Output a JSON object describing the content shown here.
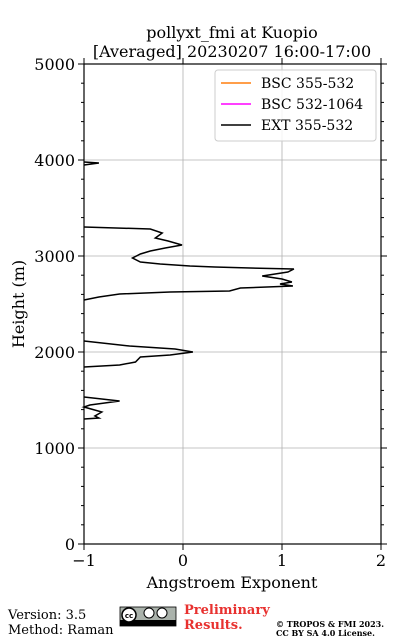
{
  "chart_data": {
    "type": "line",
    "title": "pollyxt_fmi at Kuopio",
    "subtitle": "[Averaged] 20230207 16:00-17:00",
    "xlabel": "Angstroem Exponent",
    "ylabel": "Height (m)",
    "xlim": [
      -1,
      2
    ],
    "ylim": [
      0,
      5000
    ],
    "xticks": [
      {
        "value": -1,
        "label": "−1"
      },
      0,
      1,
      2
    ],
    "yticks": [
      0,
      1000,
      2000,
      3000,
      4000,
      5000
    ],
    "yticks_minor": [
      200,
      400,
      600,
      800,
      1200,
      1400,
      1600,
      1800,
      2200,
      2400,
      2600,
      2800,
      3200,
      3400,
      3600,
      3800,
      4200,
      4400,
      4600,
      4800
    ],
    "grid": true,
    "legend": "upper right",
    "series": [
      {
        "name": "BSC 355-532",
        "color": "#ff7f0e",
        "values": [],
        "heights": []
      },
      {
        "name": "BSC 532-1064",
        "color": "#ff00ff",
        "values": [],
        "heights": []
      },
      {
        "name": "EXT 355-532",
        "color": "#000000",
        "values": [
          -1,
          -0.85,
          -1,
          null,
          -1,
          -0.33,
          -0.21,
          -0.28,
          -0.15,
          -0.01,
          -0.18,
          -0.33,
          -0.43,
          -0.51,
          -0.43,
          -0.23,
          0.07,
          0.32,
          0.68,
          1.12,
          1.06,
          0.8,
          1.0,
          1.1,
          0.98,
          1.11,
          0.58,
          0.47,
          -0.13,
          -0.64,
          -0.85,
          -1,
          null,
          -1,
          -0.54,
          -0.08,
          0.1,
          -0.13,
          -0.43,
          -0.48,
          -0.64,
          -1,
          null,
          -1,
          -0.64,
          -0.94,
          -1,
          -0.82,
          -0.89,
          -0.85,
          -1
        ],
        "heights": [
          3979,
          3969,
          3948,
          null,
          3302,
          3281,
          3240,
          3188,
          3156,
          3115,
          3083,
          3052,
          3021,
          2979,
          2938,
          2917,
          2896,
          2885,
          2875,
          2865,
          2833,
          2792,
          2760,
          2729,
          2708,
          2688,
          2667,
          2635,
          2625,
          2604,
          2573,
          2542,
          null,
          2115,
          2063,
          2031,
          2000,
          1969,
          1948,
          1896,
          1865,
          1844,
          null,
          1531,
          1490,
          1448,
          1427,
          1375,
          1333,
          1313,
          1302
        ]
      }
    ],
    "footer": {
      "version": "Version: 3.5",
      "method": "Method: Raman",
      "status": "Preliminary Results.",
      "copyright": "© TROPOS & FMI 2023.",
      "license": "CC BY SA 4.0 License."
    }
  }
}
